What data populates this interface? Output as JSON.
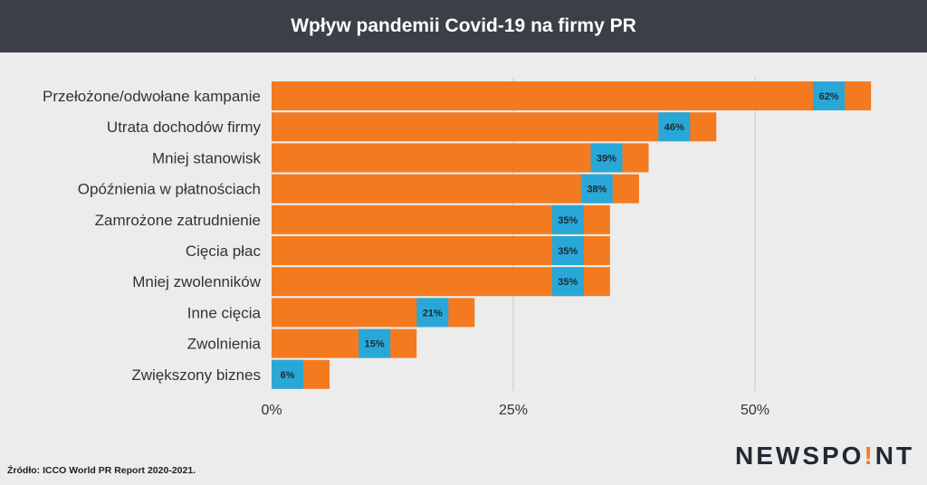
{
  "header": {
    "title": "Wpływ pandemii Covid-19 na firmy PR"
  },
  "chart_data": {
    "type": "bar",
    "orientation": "horizontal",
    "title": "Wpływ pandemii Covid-19 na firmy PR",
    "categories": [
      "Przełożone/odwołane kampanie",
      "Utrata dochodów firmy",
      "Mniej stanowisk",
      "Opóźnienia w płatnościach",
      "Zamrożone zatrudnienie",
      "Cięcia płac",
      "Mniej zwolenników",
      "Inne cięcia",
      "Zwolnienia",
      "Zwiększony biznes"
    ],
    "values": [
      62,
      46,
      39,
      38,
      35,
      35,
      35,
      21,
      15,
      6
    ],
    "data_labels": [
      "62%",
      "46%",
      "39%",
      "38%",
      "35%",
      "35%",
      "35%",
      "21%",
      "15%",
      "6%"
    ],
    "xlim": [
      0,
      62
    ],
    "xticks": [
      0,
      25,
      50
    ],
    "xtick_labels": [
      "0%",
      "25%",
      "50%"
    ],
    "grid": "vertical",
    "colors": {
      "bar": "#f47a20",
      "label_bg": "#29a8d8",
      "grid": "#c8c8c8",
      "text": "#333333"
    }
  },
  "footer": {
    "source": "Źródło: ICCO World PR Report 2020-2021.",
    "logo_pre": "NEWSPO",
    "logo_mark": "!",
    "logo_post": "NT"
  }
}
